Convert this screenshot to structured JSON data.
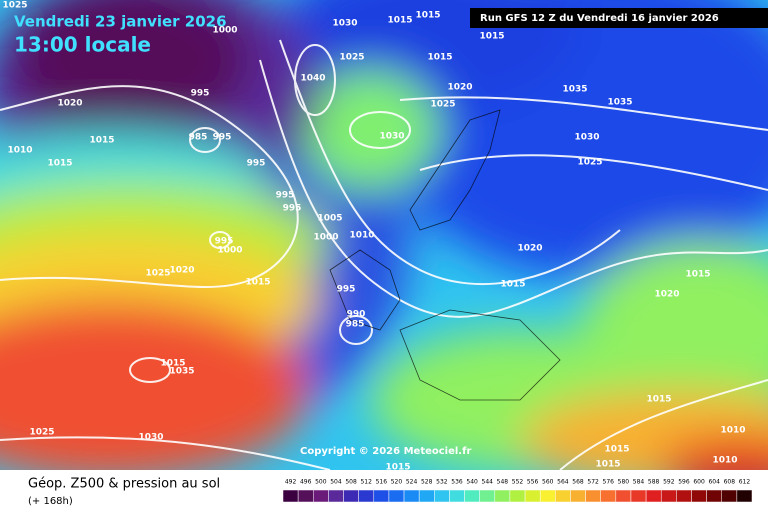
{
  "header": {
    "date": "Vendredi 23 janvier 2026",
    "time": "13:00 locale",
    "run": "Run GFS 12 Z du Vendredi 16 janvier 2026"
  },
  "copyright": "Copyright © 2026 Meteociel.fr",
  "legend": {
    "title": "Géop. Z500 & pression au sol",
    "subtitle": "(+ 168h)",
    "values": [
      492,
      496,
      500,
      504,
      508,
      512,
      516,
      520,
      524,
      528,
      532,
      536,
      540,
      544,
      548,
      552,
      556,
      560,
      564,
      568,
      572,
      576,
      580,
      584,
      588,
      592,
      596,
      600,
      604,
      608,
      612
    ],
    "colors": [
      "#3a0040",
      "#55105a",
      "#6a1a78",
      "#5a2a9a",
      "#3c2ab4",
      "#2a3ad0",
      "#1e50e8",
      "#1a6cf0",
      "#1a8af4",
      "#20a8f4",
      "#30c4f0",
      "#40dce0",
      "#50ecc0",
      "#70f090",
      "#90f060",
      "#b0f040",
      "#d8f030",
      "#f8f030",
      "#f8d030",
      "#f8b030",
      "#f89030",
      "#f87030",
      "#f05030",
      "#e83828",
      "#e02020",
      "#c81818",
      "#b01010",
      "#900808",
      "#700404",
      "#500202",
      "#200000"
    ]
  },
  "isobars": [
    "1025",
    "1000",
    "1030",
    "1015",
    "1015",
    "1015",
    "1025",
    "1015",
    "1040",
    "1020",
    "995",
    "1020",
    "1035",
    "1035",
    "1025",
    "1030",
    "1015",
    "985",
    "995",
    "1010",
    "1015",
    "995",
    "1030",
    "1025",
    "995",
    "995",
    "1005",
    "1000",
    "1010",
    "995",
    "1000",
    "1020",
    "1025",
    "1020",
    "1015",
    "1015",
    "1015",
    "1020",
    "995",
    "990",
    "985",
    "1015",
    "1035",
    "1015",
    "1025",
    "1030",
    "1010",
    "1015",
    "1015",
    "1010",
    "1015"
  ]
}
